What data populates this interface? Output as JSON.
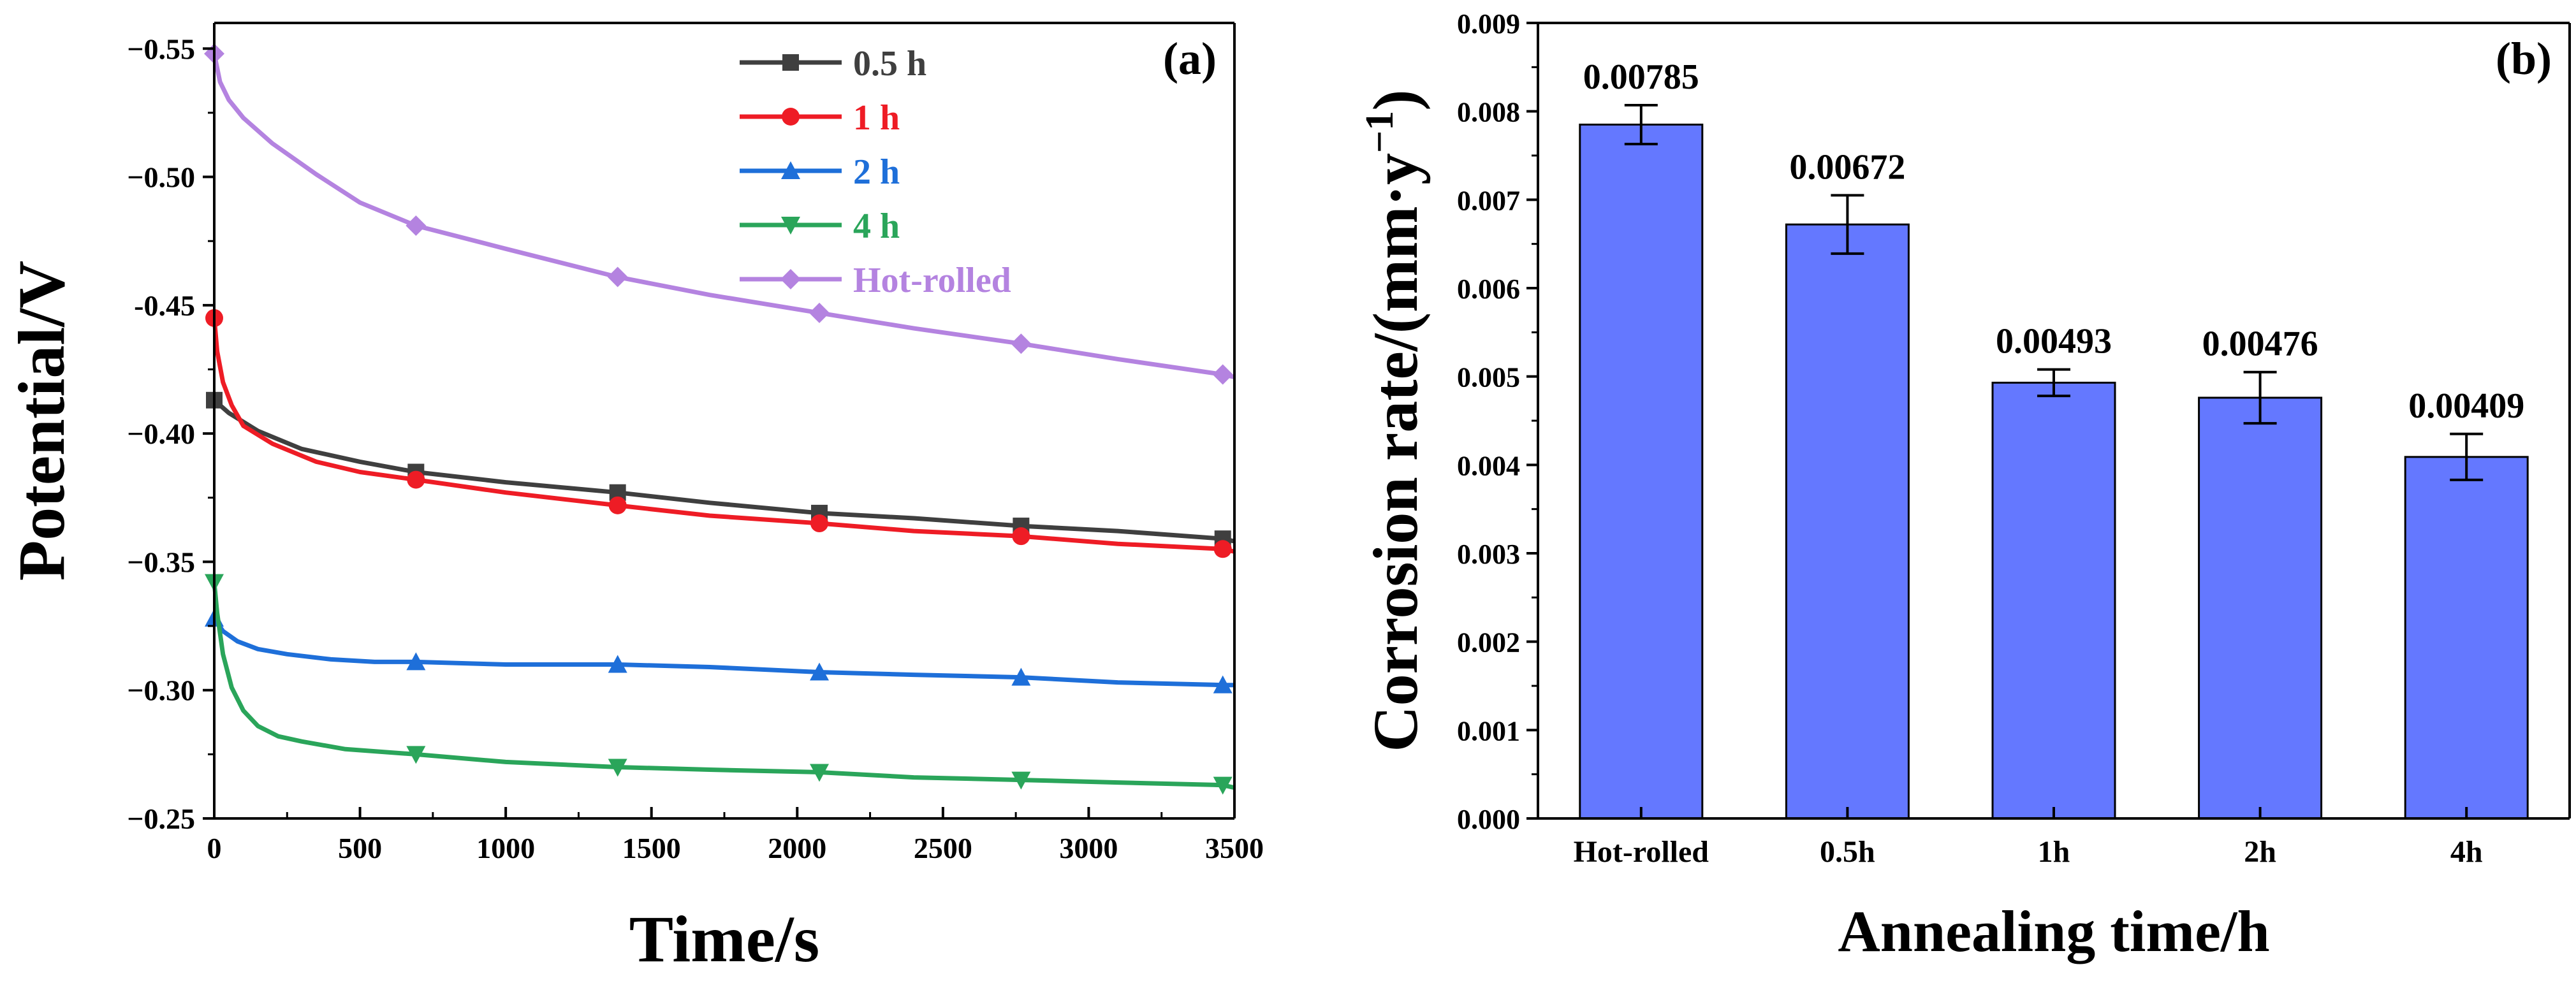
{
  "chart_data": [
    {
      "type": "line",
      "panel_label": "(a)",
      "xlabel": "Time/s",
      "ylabel": "Potential/V",
      "xlim": [
        0,
        3500
      ],
      "ylim": [
        -0.25,
        -0.56
      ],
      "x_ticks": [
        0,
        500,
        1000,
        1500,
        2000,
        2500,
        3000,
        3500
      ],
      "x_tick_labels": [
        "0",
        "500",
        "1000",
        "1500",
        "2000",
        "2500",
        "3000",
        "3500"
      ],
      "y_ticks": [
        -0.25,
        -0.3,
        -0.35,
        -0.4,
        -0.45,
        -0.5,
        -0.55
      ],
      "y_tick_labels": [
        "−0.25",
        "−0.30",
        "−0.35",
        "−0.40",
        "-0.45",
        "−0.50",
        "−0.55"
      ],
      "legend_position": "top-center",
      "series": [
        {
          "name": "0.5 h",
          "color": "#3f3f3f",
          "marker": "square",
          "x": [
            0,
            50,
            150,
            300,
            500,
            692,
            1000,
            1384,
            1700,
            2076,
            2400,
            2768,
            3100,
            3460,
            3500
          ],
          "y": [
            -0.413,
            -0.408,
            -0.401,
            -0.394,
            -0.389,
            -0.385,
            -0.381,
            -0.377,
            -0.373,
            -0.369,
            -0.367,
            -0.364,
            -0.362,
            -0.359,
            -0.358
          ]
        },
        {
          "name": "1 h",
          "color": "#ee1c25",
          "marker": "circle",
          "x": [
            0,
            10,
            30,
            60,
            100,
            200,
            350,
            500,
            692,
            1000,
            1384,
            1700,
            2076,
            2400,
            2768,
            3100,
            3460,
            3500
          ],
          "y": [
            -0.445,
            -0.432,
            -0.42,
            -0.411,
            -0.403,
            -0.396,
            -0.389,
            -0.385,
            -0.382,
            -0.377,
            -0.372,
            -0.368,
            -0.365,
            -0.362,
            -0.36,
            -0.357,
            -0.355,
            -0.354
          ]
        },
        {
          "name": "2 h",
          "color": "#1e6fd9",
          "marker": "triangle-up",
          "x": [
            0,
            30,
            80,
            150,
            250,
            400,
            550,
            692,
            1000,
            1384,
            1700,
            2076,
            2400,
            2768,
            3100,
            3460,
            3500
          ],
          "y": [
            -0.328,
            -0.323,
            -0.319,
            -0.316,
            -0.314,
            -0.312,
            -0.311,
            -0.311,
            -0.31,
            -0.31,
            -0.309,
            -0.307,
            -0.306,
            -0.305,
            -0.303,
            -0.302,
            -0.302
          ]
        },
        {
          "name": "4 h",
          "color": "#2aa55a",
          "marker": "triangle-down",
          "x": [
            0,
            10,
            30,
            60,
            100,
            150,
            220,
            300,
            450,
            692,
            1000,
            1384,
            1700,
            2076,
            2400,
            2768,
            3100,
            3460,
            3500
          ],
          "y": [
            -0.342,
            -0.33,
            -0.314,
            -0.301,
            -0.292,
            -0.286,
            -0.282,
            -0.28,
            -0.277,
            -0.275,
            -0.272,
            -0.27,
            -0.269,
            -0.268,
            -0.266,
            -0.265,
            -0.264,
            -0.263,
            -0.262
          ]
        },
        {
          "name": "Hot-rolled",
          "color": "#b483e0",
          "marker": "diamond",
          "x": [
            0,
            20,
            50,
            100,
            200,
            350,
            500,
            692,
            1000,
            1384,
            1700,
            2076,
            2400,
            2768,
            3100,
            3460,
            3500
          ],
          "y": [
            -0.548,
            -0.537,
            -0.53,
            -0.523,
            -0.513,
            -0.501,
            -0.49,
            -0.481,
            -0.472,
            -0.461,
            -0.454,
            -0.447,
            -0.441,
            -0.435,
            -0.429,
            -0.423,
            -0.422
          ]
        }
      ],
      "marker_x": [
        0,
        692,
        1384,
        2076,
        2768,
        3460
      ]
    },
    {
      "type": "bar",
      "panel_label": "(b)",
      "xlabel": "Annealing time/h",
      "ylabel_main": "Corrosion rate/(mm·y",
      "ylabel_sup": "−1",
      "ylabel_close": ")",
      "ylim": [
        0,
        0.009
      ],
      "y_ticks": [
        0,
        0.001,
        0.002,
        0.003,
        0.004,
        0.005,
        0.006,
        0.007,
        0.008,
        0.009
      ],
      "y_tick_labels": [
        "0.000",
        "0.001",
        "0.002",
        "0.003",
        "0.004",
        "0.005",
        "0.006",
        "0.007",
        "0.008",
        "0.009"
      ],
      "categories": [
        "Hot-rolled",
        "0.5h",
        "1h",
        "2h",
        "4h"
      ],
      "values": [
        0.00785,
        0.00672,
        0.00493,
        0.00476,
        0.00409
      ],
      "value_labels": [
        "0.00785",
        "0.00672",
        "0.00493",
        "0.00476",
        "0.00409"
      ],
      "errors": [
        0.00022,
        0.00033,
        0.00015,
        0.00029,
        0.00026
      ],
      "bar_color": "#6478ff"
    }
  ]
}
